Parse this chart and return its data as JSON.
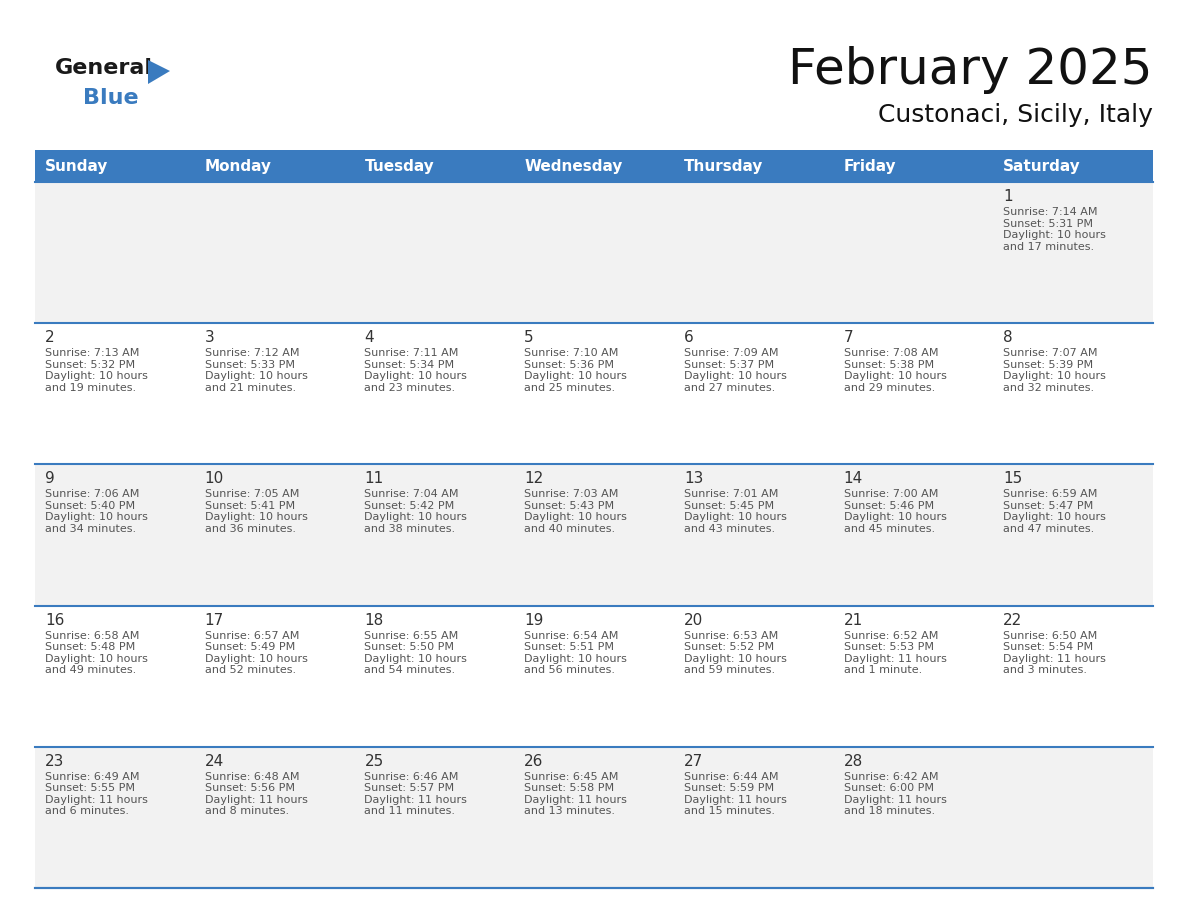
{
  "title": "February 2025",
  "subtitle": "Custonaci, Sicily, Italy",
  "header_color": "#3a7bbf",
  "header_text_color": "#ffffff",
  "days_of_week": [
    "Sunday",
    "Monday",
    "Tuesday",
    "Wednesday",
    "Thursday",
    "Friday",
    "Saturday"
  ],
  "bg_color": "#ffffff",
  "cell_bg_even": "#f2f2f2",
  "cell_bg_odd": "#ffffff",
  "divider_color": "#3a7bbf",
  "day_num_color": "#333333",
  "info_text_color": "#555555",
  "calendar": [
    [
      null,
      null,
      null,
      null,
      null,
      null,
      {
        "day": 1,
        "sunrise": "7:14 AM",
        "sunset": "5:31 PM",
        "daylight": "10 hours and 17 minutes."
      }
    ],
    [
      {
        "day": 2,
        "sunrise": "7:13 AM",
        "sunset": "5:32 PM",
        "daylight": "10 hours and 19 minutes."
      },
      {
        "day": 3,
        "sunrise": "7:12 AM",
        "sunset": "5:33 PM",
        "daylight": "10 hours and 21 minutes."
      },
      {
        "day": 4,
        "sunrise": "7:11 AM",
        "sunset": "5:34 PM",
        "daylight": "10 hours and 23 minutes."
      },
      {
        "day": 5,
        "sunrise": "7:10 AM",
        "sunset": "5:36 PM",
        "daylight": "10 hours and 25 minutes."
      },
      {
        "day": 6,
        "sunrise": "7:09 AM",
        "sunset": "5:37 PM",
        "daylight": "10 hours and 27 minutes."
      },
      {
        "day": 7,
        "sunrise": "7:08 AM",
        "sunset": "5:38 PM",
        "daylight": "10 hours and 29 minutes."
      },
      {
        "day": 8,
        "sunrise": "7:07 AM",
        "sunset": "5:39 PM",
        "daylight": "10 hours and 32 minutes."
      }
    ],
    [
      {
        "day": 9,
        "sunrise": "7:06 AM",
        "sunset": "5:40 PM",
        "daylight": "10 hours and 34 minutes."
      },
      {
        "day": 10,
        "sunrise": "7:05 AM",
        "sunset": "5:41 PM",
        "daylight": "10 hours and 36 minutes."
      },
      {
        "day": 11,
        "sunrise": "7:04 AM",
        "sunset": "5:42 PM",
        "daylight": "10 hours and 38 minutes."
      },
      {
        "day": 12,
        "sunrise": "7:03 AM",
        "sunset": "5:43 PM",
        "daylight": "10 hours and 40 minutes."
      },
      {
        "day": 13,
        "sunrise": "7:01 AM",
        "sunset": "5:45 PM",
        "daylight": "10 hours and 43 minutes."
      },
      {
        "day": 14,
        "sunrise": "7:00 AM",
        "sunset": "5:46 PM",
        "daylight": "10 hours and 45 minutes."
      },
      {
        "day": 15,
        "sunrise": "6:59 AM",
        "sunset": "5:47 PM",
        "daylight": "10 hours and 47 minutes."
      }
    ],
    [
      {
        "day": 16,
        "sunrise": "6:58 AM",
        "sunset": "5:48 PM",
        "daylight": "10 hours and 49 minutes."
      },
      {
        "day": 17,
        "sunrise": "6:57 AM",
        "sunset": "5:49 PM",
        "daylight": "10 hours and 52 minutes."
      },
      {
        "day": 18,
        "sunrise": "6:55 AM",
        "sunset": "5:50 PM",
        "daylight": "10 hours and 54 minutes."
      },
      {
        "day": 19,
        "sunrise": "6:54 AM",
        "sunset": "5:51 PM",
        "daylight": "10 hours and 56 minutes."
      },
      {
        "day": 20,
        "sunrise": "6:53 AM",
        "sunset": "5:52 PM",
        "daylight": "10 hours and 59 minutes."
      },
      {
        "day": 21,
        "sunrise": "6:52 AM",
        "sunset": "5:53 PM",
        "daylight": "11 hours and 1 minute."
      },
      {
        "day": 22,
        "sunrise": "6:50 AM",
        "sunset": "5:54 PM",
        "daylight": "11 hours and 3 minutes."
      }
    ],
    [
      {
        "day": 23,
        "sunrise": "6:49 AM",
        "sunset": "5:55 PM",
        "daylight": "11 hours and 6 minutes."
      },
      {
        "day": 24,
        "sunrise": "6:48 AM",
        "sunset": "5:56 PM",
        "daylight": "11 hours and 8 minutes."
      },
      {
        "day": 25,
        "sunrise": "6:46 AM",
        "sunset": "5:57 PM",
        "daylight": "11 hours and 11 minutes."
      },
      {
        "day": 26,
        "sunrise": "6:45 AM",
        "sunset": "5:58 PM",
        "daylight": "11 hours and 13 minutes."
      },
      {
        "day": 27,
        "sunrise": "6:44 AM",
        "sunset": "5:59 PM",
        "daylight": "11 hours and 15 minutes."
      },
      {
        "day": 28,
        "sunrise": "6:42 AM",
        "sunset": "6:00 PM",
        "daylight": "11 hours and 18 minutes."
      },
      null
    ]
  ],
  "logo_general_color": "#1a1a1a",
  "logo_blue_color": "#3a7bbf",
  "logo_triangle_color": "#3a7bbf",
  "title_fontsize": 36,
  "subtitle_fontsize": 18,
  "header_fontsize": 11,
  "day_num_fontsize": 11,
  "info_fontsize": 8
}
